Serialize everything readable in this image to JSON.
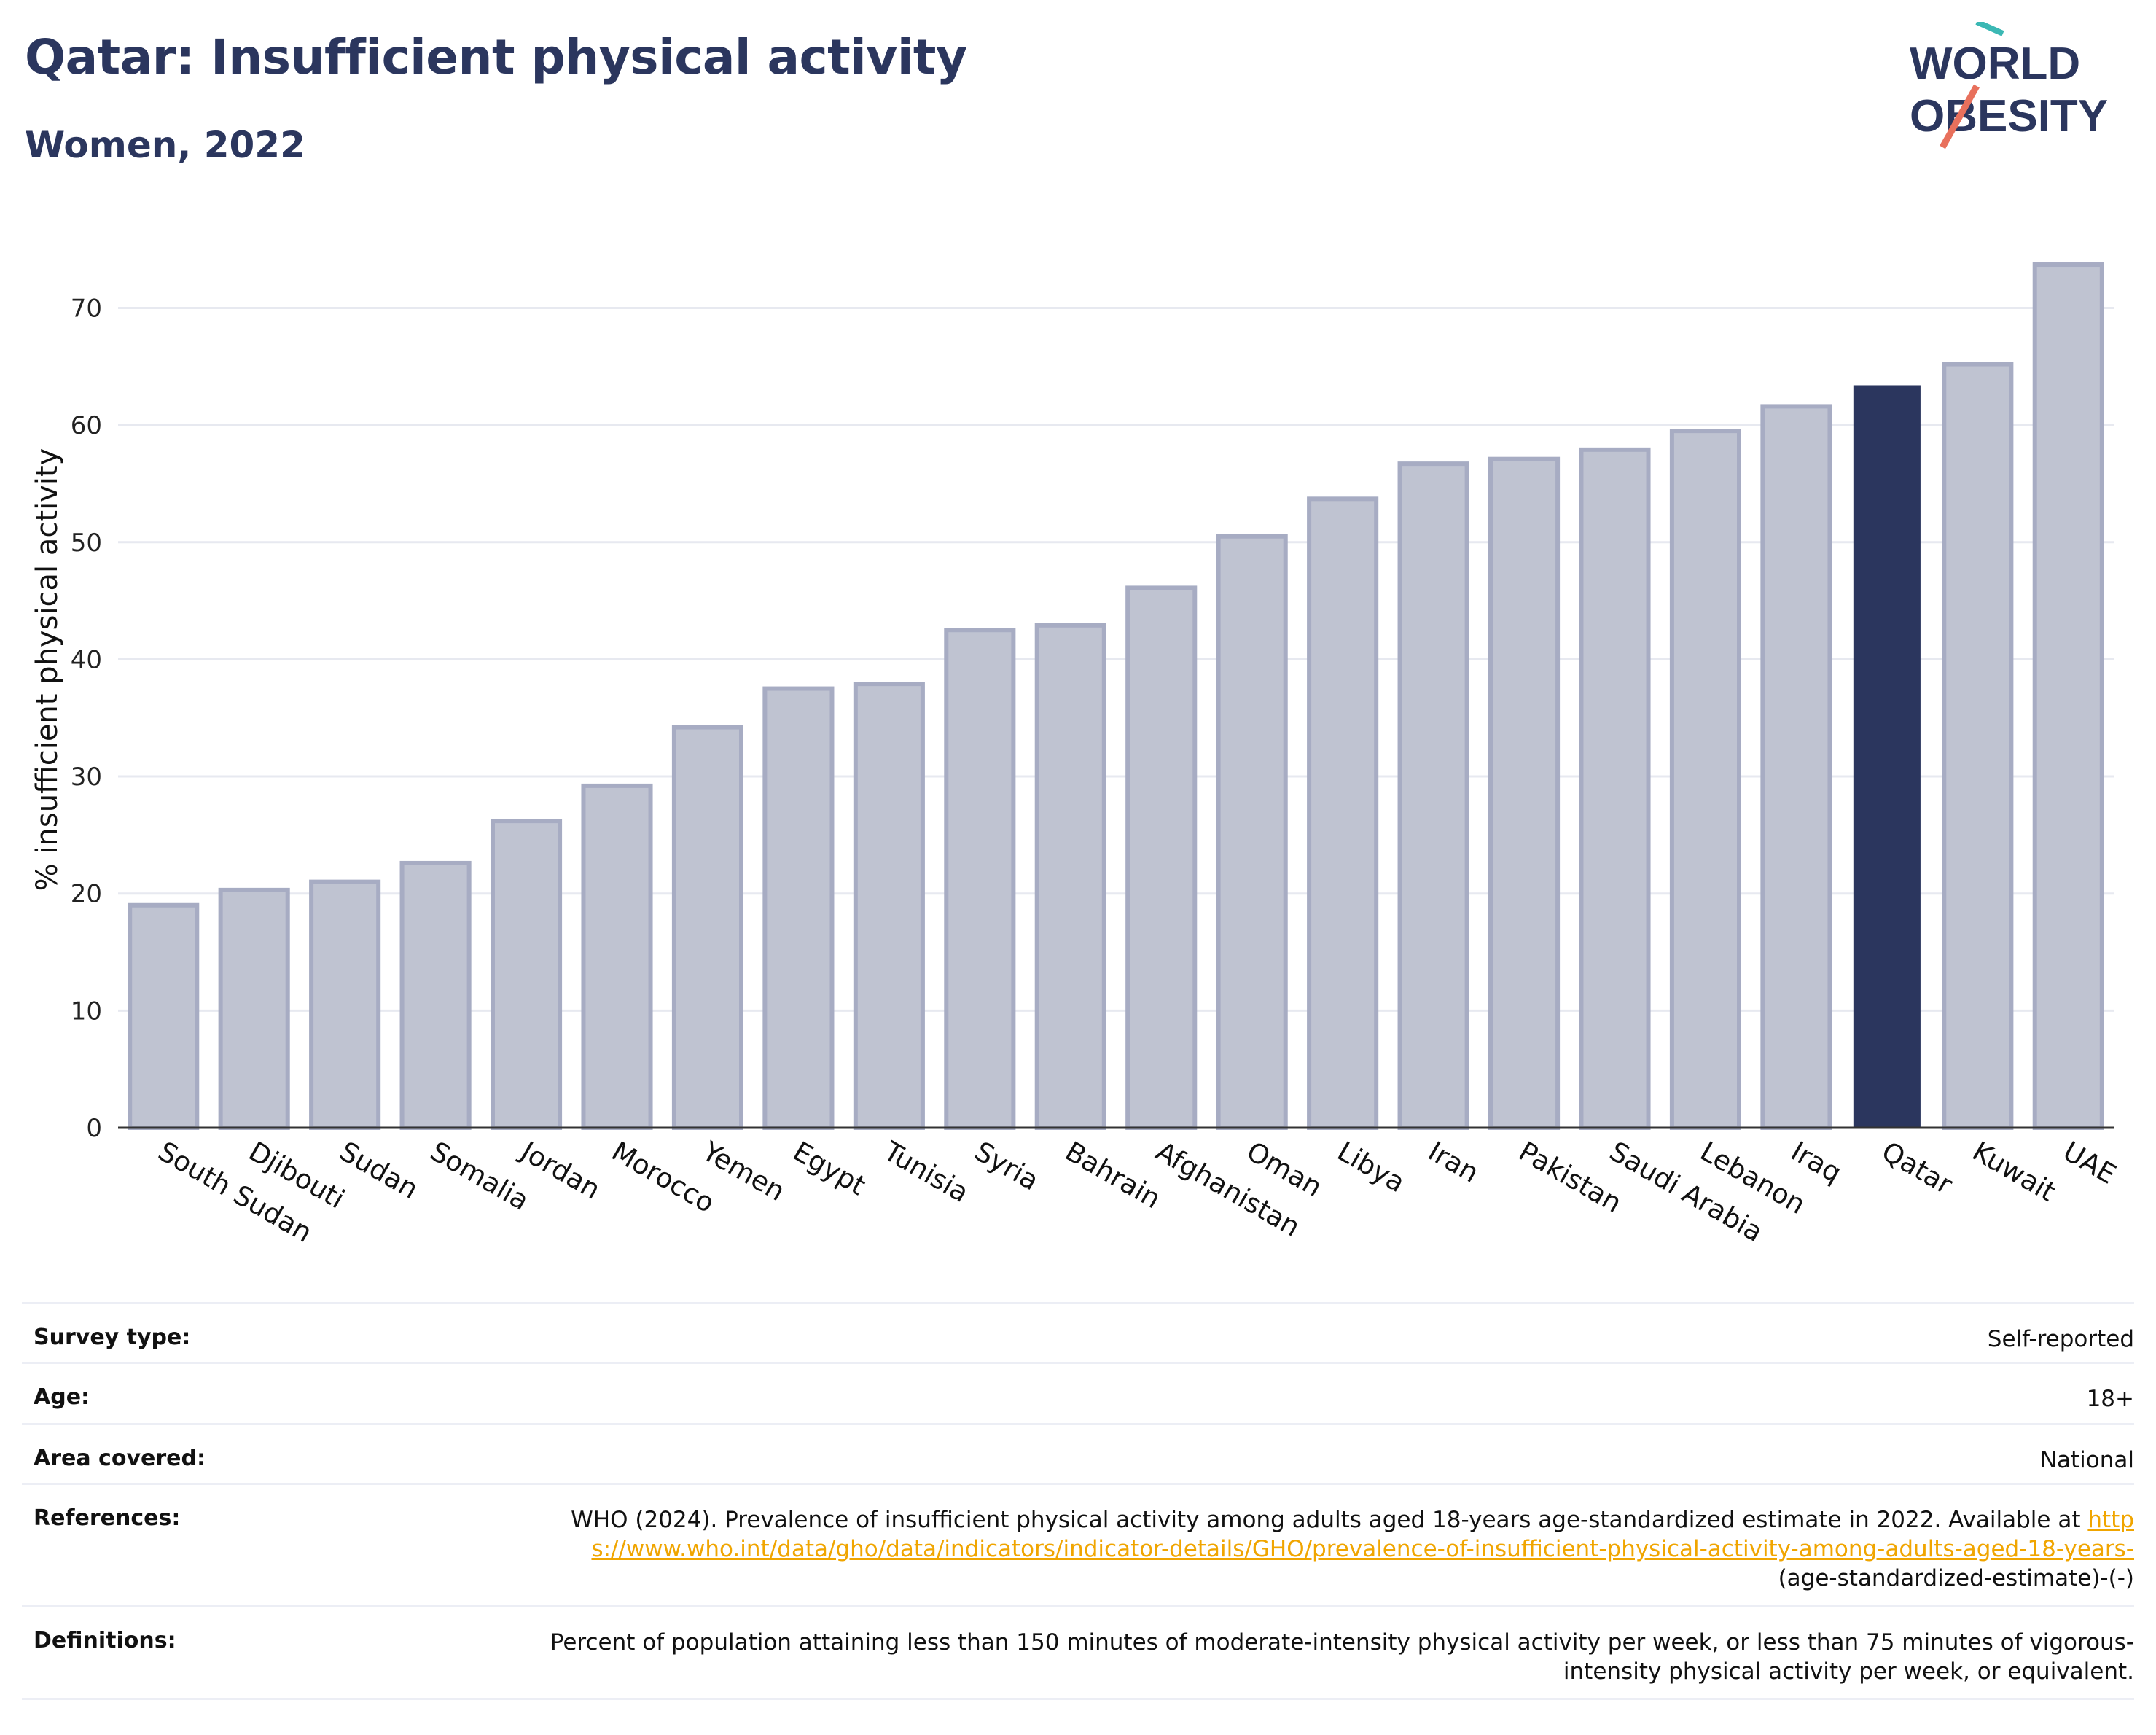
{
  "header": {
    "title": "Qatar: Insufficient physical activity",
    "subtitle": "Women, 2022"
  },
  "logo": {
    "line1": "WORLD",
    "line2": "OBESITY",
    "icon": "world-obesity-logo"
  },
  "colors": {
    "highlight": "#2b365e",
    "bar": "#bfc3d1",
    "bar_edge": "#a7acc3",
    "accent_red": "#e8705c",
    "accent_teal": "#3bb8b4",
    "link": "#f0a500"
  },
  "chart_data": {
    "type": "bar",
    "categories": [
      "South Sudan",
      "Djibouti",
      "Sudan",
      "Somalia",
      "Jordan",
      "Morocco",
      "Yemen",
      "Egypt",
      "Tunisia",
      "Syria",
      "Bahrain",
      "Afghanistan",
      "Oman",
      "Libya",
      "Iran",
      "Pakistan",
      "Saudi Arabia",
      "Lebanon",
      "Iraq",
      "Qatar",
      "Kuwait",
      "UAE"
    ],
    "values": [
      19.0,
      20.3,
      21.0,
      22.6,
      26.2,
      29.2,
      34.2,
      37.5,
      37.9,
      42.5,
      42.9,
      46.1,
      50.5,
      53.7,
      56.7,
      57.1,
      57.9,
      59.5,
      61.6,
      63.4,
      65.2,
      73.7
    ],
    "highlight": "Qatar",
    "xlabel": "",
    "ylabel": "% insufficient physical activity",
    "ylim": [
      0,
      77
    ],
    "yticks": [
      0,
      10,
      20,
      30,
      40,
      50,
      60,
      70
    ],
    "grid": true
  },
  "meta": {
    "survey_type": {
      "label": "Survey type:",
      "value": "Self-reported"
    },
    "age": {
      "label": "Age:",
      "value": "18+"
    },
    "area": {
      "label": "Area covered:",
      "value": "National"
    },
    "references": {
      "label": "References:",
      "text": "WHO (2024). Prevalence of insufficient physical activity among adults aged 18-years age-standardized estimate in 2022. Available at",
      "link": "https://www.who.int/data/gho/data/indicators/indicator-details/GHO/prevalence-of-insufficient-physical-activity-among-adults-aged-18-years-",
      "suffix": "(age-standardized-estimate)-(-)"
    },
    "definitions": {
      "label": "Definitions:",
      "value": "Percent of population attaining less than 150 minutes of moderate-intensity physical activity per week, or less than 75 minutes of vigorous-intensity physical activity per week, or equivalent."
    }
  }
}
